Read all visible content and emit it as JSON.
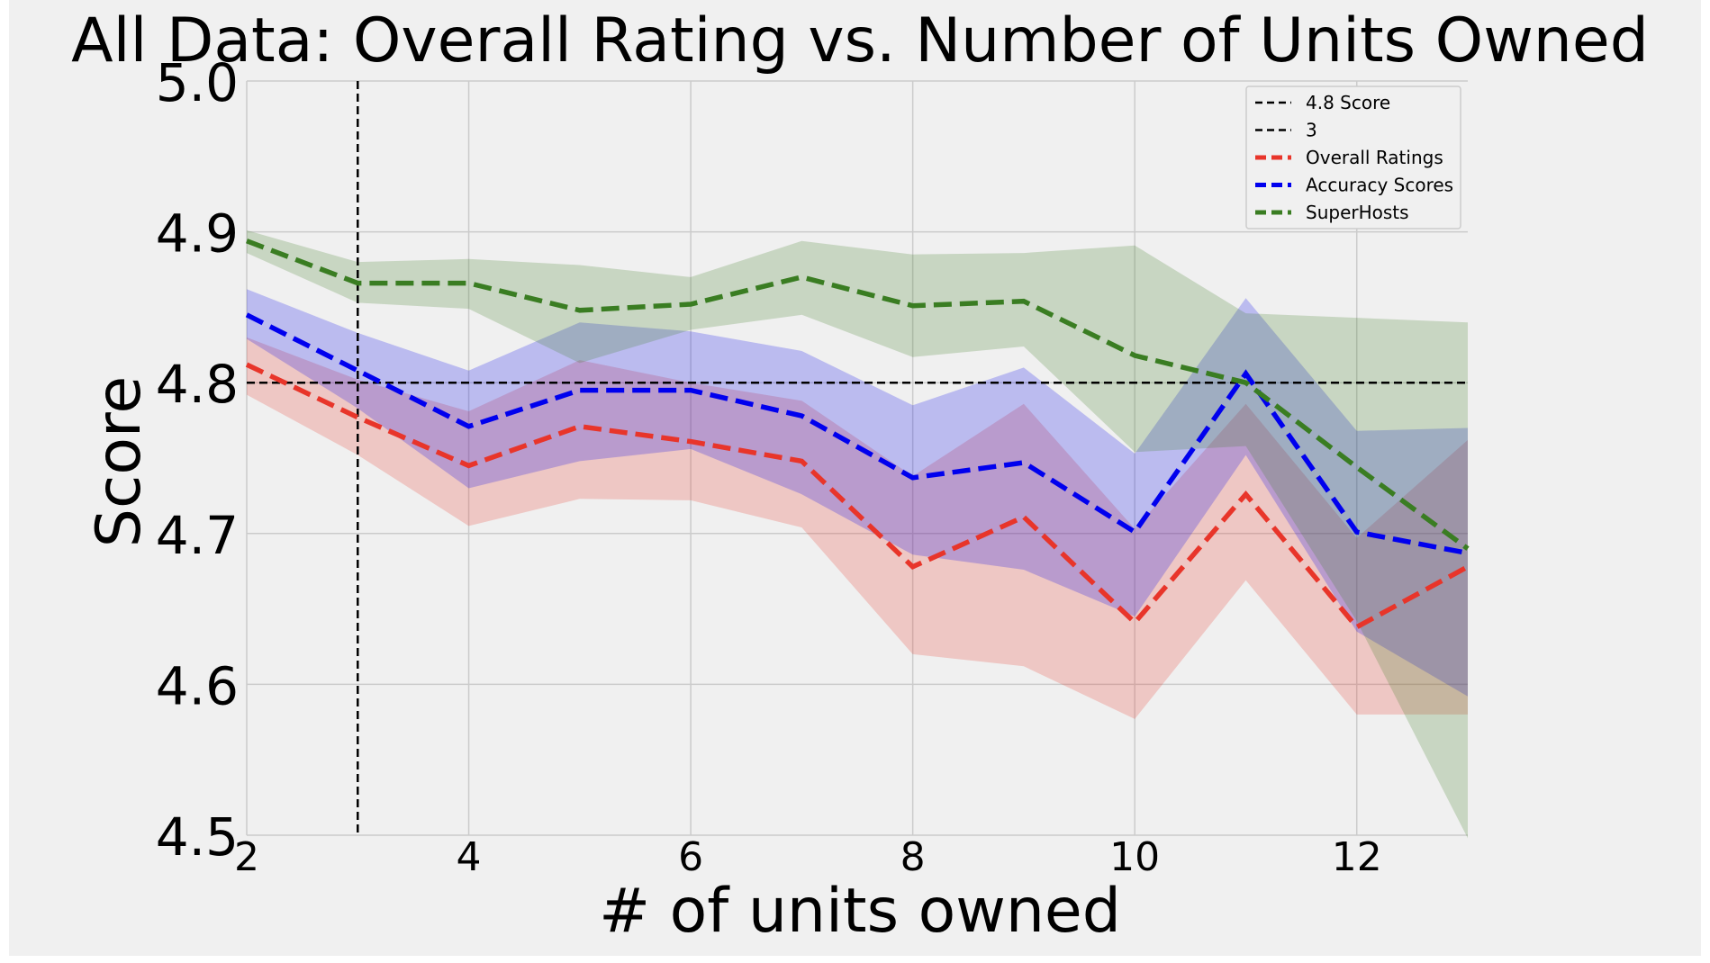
{
  "chart_data": {
    "type": "line",
    "title": "All Data: Overall Rating vs. Number of Units Owned",
    "xlabel": "# of units owned",
    "ylabel": "Score",
    "xlim": [
      2,
      13
    ],
    "ylim": [
      4.5,
      5.0
    ],
    "xticks": [
      2,
      4,
      6,
      8,
      10,
      12
    ],
    "yticks": [
      "4.5",
      "4.6",
      "4.7",
      "4.8",
      "4.9",
      "5.0"
    ],
    "grid": true,
    "legend_position": "top-right",
    "x": [
      2,
      3,
      4,
      5,
      6,
      7,
      8,
      9,
      10,
      11,
      12,
      13
    ],
    "reference_lines": [
      {
        "name": "4.8 Score",
        "orientation": "horizontal",
        "value": 4.8,
        "color": "#000000"
      },
      {
        "name": "3",
        "orientation": "vertical",
        "value": 3,
        "color": "#000000"
      }
    ],
    "series": [
      {
        "name": "Overall Ratings",
        "color": "#e8352a",
        "values": [
          4.812,
          4.777,
          4.745,
          4.771,
          4.761,
          4.748,
          4.678,
          4.711,
          4.641,
          4.726,
          4.638,
          4.678
        ],
        "lower": [
          4.792,
          4.752,
          4.705,
          4.723,
          4.722,
          4.704,
          4.62,
          4.612,
          4.577,
          4.669,
          4.58,
          4.58
        ],
        "upper": [
          4.83,
          4.802,
          4.781,
          4.815,
          4.8,
          4.788,
          4.738,
          4.786,
          4.703,
          4.786,
          4.697,
          4.762
        ]
      },
      {
        "name": "Accuracy Scores",
        "color": "#0000ee",
        "values": [
          4.845,
          4.808,
          4.771,
          4.795,
          4.795,
          4.778,
          4.737,
          4.747,
          4.701,
          4.806,
          4.701,
          4.687
        ],
        "lower": [
          4.829,
          4.783,
          4.73,
          4.748,
          4.756,
          4.726,
          4.686,
          4.676,
          4.645,
          4.752,
          4.635,
          4.592
        ],
        "upper": [
          4.862,
          4.833,
          4.808,
          4.84,
          4.834,
          4.821,
          4.785,
          4.81,
          4.753,
          4.856,
          4.768,
          4.77
        ]
      },
      {
        "name": "SuperHosts",
        "color": "#3a7d22",
        "values": [
          4.894,
          4.866,
          4.866,
          4.848,
          4.852,
          4.87,
          4.851,
          4.854,
          4.818,
          4.8,
          4.744,
          4.69
        ],
        "lower": [
          4.886,
          4.853,
          4.849,
          4.813,
          4.835,
          4.845,
          4.817,
          4.824,
          4.754,
          4.758,
          4.642,
          4.498
        ],
        "upper": [
          4.901,
          4.88,
          4.882,
          4.878,
          4.87,
          4.894,
          4.885,
          4.886,
          4.891,
          4.846,
          4.843,
          4.84
        ]
      }
    ]
  }
}
